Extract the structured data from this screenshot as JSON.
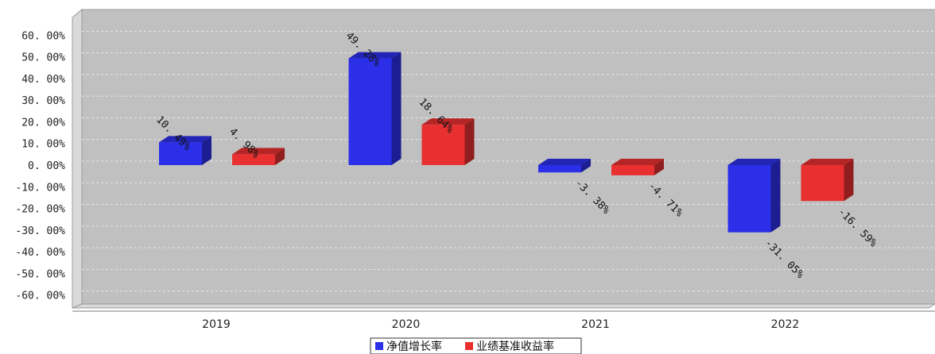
{
  "chart_data": {
    "type": "bar",
    "style": "3d",
    "categories": [
      "2019",
      "2020",
      "2021",
      "2022"
    ],
    "series": [
      {
        "name": "净值增长率",
        "color": "#2b2fe8",
        "values": [
          10.49,
          49.28,
          -3.38,
          -31.05
        ],
        "labels": [
          "10. 49%",
          "49. 28%",
          "-3. 38%",
          "-31. 05%"
        ]
      },
      {
        "name": "业绩基准收益率",
        "color": "#e83030",
        "values": [
          4.98,
          18.64,
          -4.71,
          -16.59
        ],
        "labels": [
          "4. 98%",
          "18. 64%",
          "-4. 71%",
          "-16. 59%"
        ]
      }
    ],
    "ylim": [
      -60,
      60
    ],
    "yticks": [
      60,
      50,
      40,
      30,
      20,
      10,
      0,
      -10,
      -20,
      -30,
      -40,
      -50,
      -60
    ],
    "ytick_labels": [
      "60. 00%",
      "50. 00%",
      "40. 00%",
      "30. 00%",
      "20. 00%",
      "10. 00%",
      "0. 00%",
      "-10. 00%",
      "-20. 00%",
      "-30. 00%",
      "-40. 00%",
      "-50. 00%",
      "-60. 00%"
    ],
    "grid": true,
    "legend": "bottom-center",
    "plot_background": "#c0c0c0"
  }
}
